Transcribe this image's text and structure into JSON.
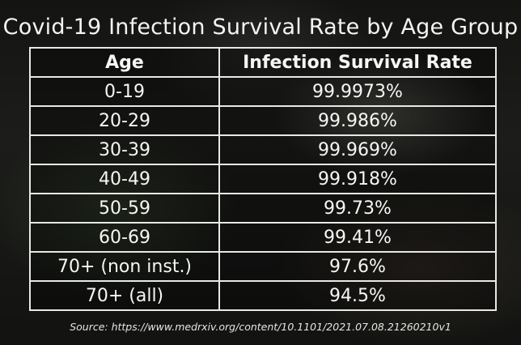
{
  "chart_data": {
    "type": "table",
    "title": "Covid-19 Infection Survival Rate by Age Group",
    "columns": [
      "Age",
      "Infection Survival Rate"
    ],
    "rows": [
      {
        "age": "0-19",
        "rate": "99.9973%"
      },
      {
        "age": "20-29",
        "rate": "99.986%"
      },
      {
        "age": "30-39",
        "rate": "99.969%"
      },
      {
        "age": "40-49",
        "rate": "99.918%"
      },
      {
        "age": "50-59",
        "rate": "99.73%"
      },
      {
        "age": "60-69",
        "rate": "99.41%"
      },
      {
        "age": "70+ (non inst.)",
        "rate": "97.6%"
      },
      {
        "age": "70+ (all)",
        "rate": "94.5%"
      }
    ],
    "source": "Source: https://www.medrxiv.org/content/10.1101/2021.07.08.21260210v1"
  }
}
